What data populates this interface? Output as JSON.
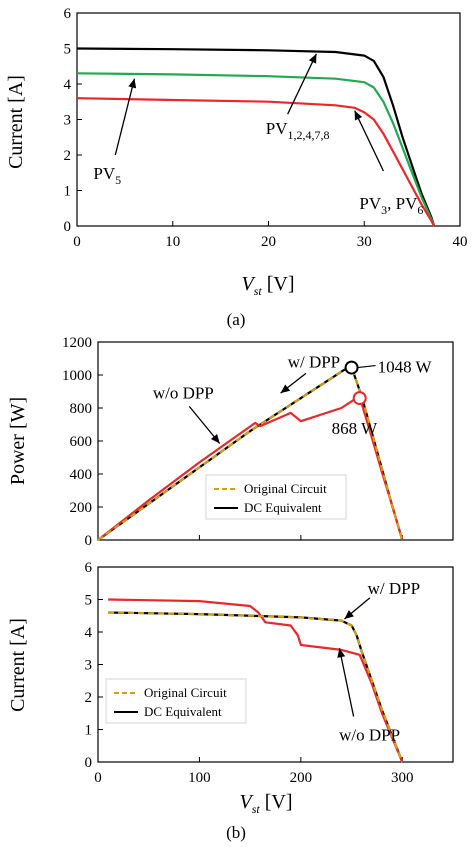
{
  "chart_data": [
    {
      "id": "a",
      "type": "line",
      "caption": "(a)",
      "xlabel": {
        "main": "V",
        "sub": "st",
        "unit": " [V]"
      },
      "ylabel": "Current [A]",
      "xlim": [
        0,
        40
      ],
      "ylim": [
        0,
        6
      ],
      "xticks": [
        "0",
        "10",
        "20",
        "30",
        "40"
      ],
      "yticks": [
        "0",
        "1",
        "2",
        "3",
        "4",
        "5",
        "6"
      ],
      "grid": false,
      "series": [
        {
          "name": "PV5",
          "color": "#000000",
          "x": [
            0,
            10,
            20,
            27,
            30,
            31,
            32,
            33,
            34,
            35,
            36,
            37,
            37.3
          ],
          "y": [
            5.0,
            4.98,
            4.95,
            4.9,
            4.8,
            4.65,
            4.2,
            3.4,
            2.5,
            1.7,
            0.9,
            0.25,
            0
          ]
        },
        {
          "name": "PV1,2,4,7,8",
          "color": "#1faa4f",
          "x": [
            0,
            10,
            20,
            27,
            30,
            31,
            32,
            33,
            34,
            35,
            36,
            37,
            37.3
          ],
          "y": [
            4.3,
            4.27,
            4.22,
            4.15,
            4.05,
            3.9,
            3.5,
            2.9,
            2.2,
            1.5,
            0.8,
            0.2,
            0
          ]
        },
        {
          "name": "PV3, PV6",
          "color": "#e8282b",
          "x": [
            0,
            10,
            20,
            27,
            29,
            30,
            31,
            32,
            33,
            34,
            35,
            36,
            37,
            37.3
          ],
          "y": [
            3.6,
            3.55,
            3.5,
            3.4,
            3.33,
            3.2,
            3.0,
            2.6,
            2.1,
            1.6,
            1.1,
            0.6,
            0.15,
            0
          ]
        }
      ],
      "annotations": [
        {
          "main": "PV",
          "sub": "5",
          "tip": [
            6,
            4.15
          ],
          "tail": [
            4,
            2.0
          ]
        },
        {
          "main": "PV",
          "sub": "1,2,4,7,8",
          "tip": [
            25,
            4.85
          ],
          "tail": [
            22,
            3.15
          ]
        },
        {
          "main": "PV",
          "sub": "3",
          "main2": ", PV",
          "sub2": "6",
          "tip": [
            29,
            3.25
          ],
          "tail": [
            32,
            1.55
          ]
        }
      ]
    },
    {
      "id": "b-top",
      "type": "line",
      "ylabel": "Power [W]",
      "xlim": [
        0,
        350
      ],
      "ylim": [
        0,
        1200
      ],
      "yticks": [
        "0",
        "200",
        "400",
        "600",
        "800",
        "1000",
        "1200"
      ],
      "grid": false,
      "legend": {
        "position": "bottom-right",
        "entries": [
          "Original Circuit",
          "DC Equivalent"
        ]
      },
      "series": [
        {
          "name": "Original Circuit",
          "color": "#d4a010",
          "dashed": true,
          "x": [
            0,
            50,
            100,
            150,
            200,
            220,
            247,
            250,
            260,
            270,
            280,
            290,
            300
          ],
          "y": [
            0,
            220,
            440,
            660,
            860,
            940,
            1048,
            1048,
            870,
            650,
            430,
            210,
            0
          ]
        },
        {
          "name": "DC Equivalent",
          "color": "#000000",
          "x": [
            0,
            50,
            100,
            150,
            200,
            220,
            247,
            250,
            260,
            270,
            280,
            290,
            300
          ],
          "y": [
            0,
            220,
            440,
            660,
            860,
            940,
            1048,
            1048,
            870,
            650,
            430,
            210,
            0
          ]
        },
        {
          "name": "w/o DPP",
          "color": "#e8282b",
          "x": [
            0,
            50,
            100,
            155,
            160,
            190,
            200,
            240,
            255,
            258,
            270,
            280,
            290,
            300
          ],
          "y": [
            0,
            240,
            470,
            710,
            690,
            770,
            720,
            800,
            860,
            868,
            620,
            410,
            210,
            0
          ]
        }
      ],
      "markers": [
        {
          "x": 250,
          "y": 1045,
          "color": "#000000",
          "label": "1048 W"
        },
        {
          "x": 258,
          "y": 860,
          "color": "#e8282b",
          "label": "868 W"
        }
      ],
      "annotations": [
        {
          "text": "w/ DPP",
          "tip": [
            180,
            890
          ],
          "tail": [
            205,
            1010
          ]
        },
        {
          "text": "w/o DPP",
          "tip": [
            120,
            585
          ],
          "tail": [
            90,
            810
          ]
        }
      ]
    },
    {
      "id": "b-bottom",
      "type": "line",
      "caption": "(b)",
      "xlabel": {
        "main": "V",
        "sub": "st",
        "unit": " [V]"
      },
      "ylabel": "Current [A]",
      "xlim": [
        0,
        350
      ],
      "ylim": [
        0,
        6
      ],
      "xticks": [
        "0",
        "100",
        "200",
        "300"
      ],
      "yticks": [
        "0",
        "1",
        "2",
        "3",
        "4",
        "5",
        "6"
      ],
      "grid": false,
      "legend": {
        "position": "bottom-left",
        "entries": [
          "Original Circuit",
          "DC Equivalent"
        ]
      },
      "series": [
        {
          "name": "Original Circuit",
          "color": "#d4a010",
          "dashed": true,
          "x": [
            10,
            100,
            200,
            240,
            250,
            255,
            260,
            270,
            280,
            290,
            300
          ],
          "y": [
            4.6,
            4.55,
            4.45,
            4.35,
            4.2,
            3.9,
            3.4,
            2.5,
            1.6,
            0.8,
            0
          ]
        },
        {
          "name": "DC Equivalent",
          "color": "#000000",
          "x": [
            10,
            100,
            200,
            240,
            250,
            255,
            260,
            270,
            280,
            290,
            300
          ],
          "y": [
            4.6,
            4.55,
            4.45,
            4.35,
            4.2,
            3.9,
            3.4,
            2.5,
            1.6,
            0.8,
            0
          ]
        },
        {
          "name": "w/o DPP",
          "color": "#e8282b",
          "x": [
            10,
            100,
            150,
            158,
            165,
            190,
            197,
            200,
            240,
            258,
            270,
            280,
            290,
            300
          ],
          "y": [
            5.0,
            4.95,
            4.8,
            4.6,
            4.3,
            4.2,
            3.9,
            3.6,
            3.45,
            3.3,
            2.4,
            1.5,
            0.75,
            0
          ]
        }
      ],
      "annotations": [
        {
          "text": "w/ DPP",
          "tip": [
            243,
            4.4
          ],
          "tail": [
            268,
            5.05
          ]
        },
        {
          "text": "w/o DPP",
          "tip": [
            238,
            3.5
          ],
          "tail": [
            252,
            1.4
          ]
        }
      ]
    }
  ]
}
